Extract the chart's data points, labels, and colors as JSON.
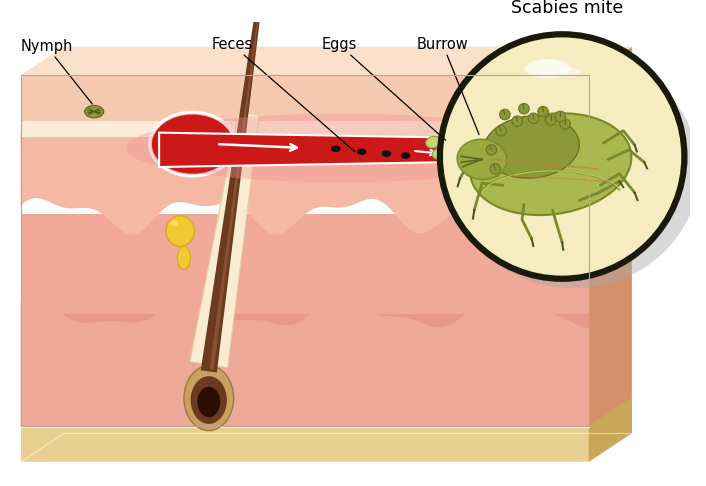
{
  "title": "Scabies mite",
  "labels": {
    "nymph": "Nymph",
    "feces": "Feces",
    "eggs": "Eggs",
    "burrow": "Burrow"
  },
  "colors": {
    "background": "#ffffff",
    "skin_surface": "#f5c8b4",
    "skin_epidermis": "#f0b8a0",
    "skin_dermis": "#eda898",
    "skin_deep_dermis": "#e89080",
    "skin_hypodermis": "#f0b888",
    "skin_right_side": "#d4906a",
    "skin_bottom": "#e8d090",
    "skin_top_face": "#fae0c8",
    "epidermis_pale": "#faecd8",
    "hair_shaft": "#6b3a1f",
    "hair_bulb": "#4a2010",
    "hair_inner": "#2a0e04",
    "follicle_sheath": "#faecd0",
    "sebaceous_yellow": "#f0c830",
    "sebaceous_gold": "#d4a820",
    "burrow_red": "#cc1818",
    "burrow_pink": "#e86060",
    "burrow_white": "#ffffff",
    "feces_black": "#111111",
    "eggs_green": "#c8d870",
    "eggs_dark": "#9aaa40",
    "mite_olive": "#9aaa40",
    "mite_dark": "#6a7a20",
    "mite_light": "#c0d060",
    "nymph_olive": "#8a9a38",
    "circle_cream": "#f5edc0",
    "circle_border": "#1a1a0a",
    "circle_shadow": "#bbbbbb",
    "annotation": "#000000",
    "text": "#000000",
    "wave_deeper": "#e8807a"
  }
}
